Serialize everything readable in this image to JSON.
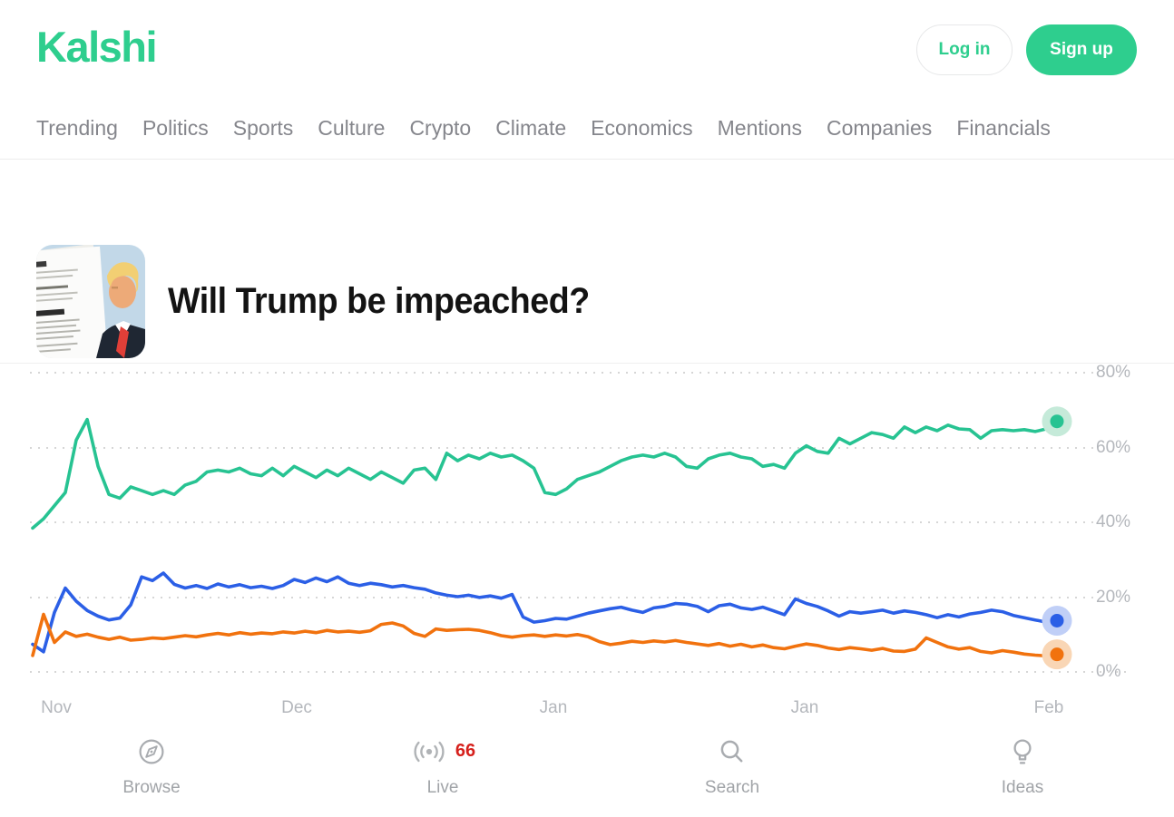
{
  "header": {
    "logo": "Kalshi",
    "login_label": "Log in",
    "signup_label": "Sign up"
  },
  "nav": {
    "items": [
      "Trending",
      "Politics",
      "Sports",
      "Culture",
      "Crypto",
      "Climate",
      "Economics",
      "Mentions",
      "Companies",
      "Financials"
    ]
  },
  "market": {
    "title": "Will Trump be impeached?",
    "thumbnail_alt": "Donald Trump beside an impeachment resolution document"
  },
  "chart_data": {
    "type": "line",
    "title": "Will Trump be impeached?",
    "x_axis_labels": [
      "Nov",
      "Dec",
      "Jan",
      "Jan",
      "Feb"
    ],
    "y_tick_labels": [
      "80%",
      "60%",
      "40%",
      "20%",
      "0%"
    ],
    "ylim": [
      0,
      80
    ],
    "grid": "dotted-horizontal",
    "legend": "none",
    "unit": "percent",
    "series": [
      {
        "name": "green",
        "color": "#27c392",
        "halo": "#c5ead9",
        "values": [
          38.5,
          41,
          44.5,
          48,
          62,
          67.5,
          55,
          47.5,
          46.5,
          49.5,
          48.5,
          47.5,
          48.5,
          47.5,
          50,
          51,
          53.5,
          54,
          53.5,
          54.5,
          53,
          52.5,
          54.5,
          52.5,
          55,
          53.5,
          52,
          54,
          52.5,
          54.5,
          53,
          51.5,
          53.5,
          52,
          50.5,
          54,
          54.5,
          51.5,
          58.5,
          56.5,
          58,
          57,
          58.5,
          57.5,
          58,
          56.5,
          54.5,
          48,
          47.5,
          49,
          51.5,
          52.5,
          53.5,
          55,
          56.5,
          57.5,
          58,
          57.5,
          58.5,
          57.5,
          55,
          54.5,
          57,
          58,
          58.5,
          57.5,
          57,
          55,
          55.5,
          54.5,
          58.5,
          60.5,
          59,
          58.5,
          62.5,
          61,
          62.5,
          64,
          63.5,
          62.5,
          65.5,
          64,
          65.5,
          64.5,
          66,
          65,
          64.8,
          62.5,
          64.5,
          64.8,
          64.5,
          64.8,
          64.3,
          65,
          67
        ]
      },
      {
        "name": "blue",
        "color": "#2b5fe6",
        "halo": "#c0cff7",
        "values": [
          7.5,
          5.5,
          16,
          22.5,
          19,
          16.5,
          15,
          14,
          14.5,
          18,
          25.5,
          24.5,
          26.5,
          23.5,
          22.5,
          23.2,
          22.4,
          23.6,
          22.8,
          23.4,
          22.6,
          23,
          22.4,
          23.2,
          24.8,
          24,
          25.2,
          24.2,
          25.5,
          23.8,
          23.2,
          23.8,
          23.4,
          22.8,
          23.2,
          22.6,
          22.2,
          21.2,
          20.6,
          20.2,
          20.6,
          20,
          20.4,
          19.8,
          20.8,
          14.8,
          13.4,
          13.8,
          14.4,
          14.2,
          15,
          15.8,
          16.4,
          17,
          17.4,
          16.6,
          16,
          17.2,
          17.6,
          18.4,
          18.2,
          17.6,
          16.2,
          17.8,
          18.2,
          17.2,
          16.8,
          17.4,
          16.4,
          15.4,
          19.6,
          18.4,
          17.6,
          16.4,
          15,
          16.2,
          15.8,
          16.2,
          16.6,
          15.8,
          16.4,
          16,
          15.4,
          14.6,
          15.4,
          14.8,
          15.6,
          16,
          16.6,
          16.2,
          15.2,
          14.6,
          14,
          13.4,
          13.8
        ]
      },
      {
        "name": "orange",
        "color": "#f1720e",
        "halo": "#f9d6b5",
        "values": [
          4.5,
          15.5,
          8,
          10.8,
          9.6,
          10.2,
          9.4,
          8.8,
          9.4,
          8.6,
          8.8,
          9.2,
          9,
          9.4,
          9.8,
          9.5,
          10,
          10.4,
          10,
          10.6,
          10.2,
          10.5,
          10.3,
          10.8,
          10.5,
          11,
          10.6,
          11.2,
          10.8,
          11,
          10.7,
          11.1,
          12.8,
          13.2,
          12.4,
          10.4,
          9.6,
          11.6,
          11.2,
          11.4,
          11.5,
          11.2,
          10.6,
          9.8,
          9.4,
          9.8,
          10,
          9.6,
          10,
          9.7,
          10.1,
          9.5,
          8.2,
          7.4,
          7.8,
          8.3,
          8,
          8.4,
          8.1,
          8.5,
          8,
          7.6,
          7.2,
          7.7,
          7,
          7.5,
          6.8,
          7.3,
          6.6,
          6.3,
          7,
          7.6,
          7.2,
          6.5,
          6.1,
          6.6,
          6.3,
          5.9,
          6.4,
          5.7,
          5.6,
          6.2,
          9.2,
          8,
          6.8,
          6.2,
          6.6,
          5.6,
          5.2,
          5.8,
          5.4,
          4.9,
          4.6,
          4.4,
          4.8
        ]
      }
    ]
  },
  "bottom_nav": {
    "items": [
      {
        "label": "Browse",
        "icon": "compass-icon"
      },
      {
        "label": "Live",
        "icon": "live-broadcast-icon",
        "badge": "66",
        "badge_color": "#d6201c"
      },
      {
        "label": "Search",
        "icon": "search-icon"
      },
      {
        "label": "Ideas",
        "icon": "lightbulb-icon"
      }
    ]
  },
  "colors": {
    "brand_green": "#2ece8e",
    "nav_gray": "#85868c",
    "axis_gray": "#b4b7bc",
    "grid_gray": "#d6d6d6",
    "badge_red": "#d6201c"
  }
}
